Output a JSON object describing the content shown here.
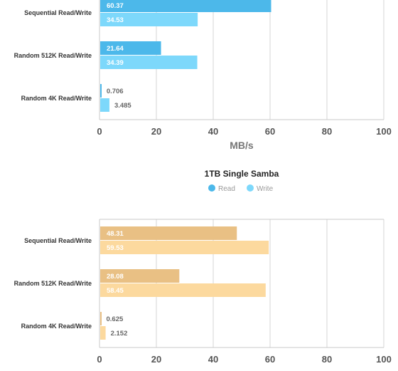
{
  "chart_data": [
    {
      "type": "bar",
      "orientation": "horizontal",
      "title": "",
      "xlabel": "MB/s",
      "xlim": [
        0,
        100
      ],
      "xticks": [
        0,
        20,
        40,
        60,
        80,
        100
      ],
      "categories": [
        "Sequential Read/Write",
        "Random 512K Read/Write",
        "Random 4K Read/Write"
      ],
      "series": [
        {
          "name": "Read",
          "color": "#4cb8ea",
          "values": [
            60.37,
            21.64,
            0.706
          ],
          "labels": [
            "60.37",
            "21.64",
            "0.706"
          ]
        },
        {
          "name": "Write",
          "color": "#7dd8fb",
          "values": [
            34.53,
            34.39,
            3.485
          ],
          "labels": [
            "34.53",
            "34.39",
            "3.485"
          ]
        }
      ],
      "grid": true,
      "legend": "none"
    },
    {
      "type": "bar",
      "orientation": "horizontal",
      "title": "1TB Single Samba",
      "xlabel": "",
      "xlim": [
        0,
        100
      ],
      "xticks": [
        0,
        20,
        40,
        60,
        80,
        100
      ],
      "categories": [
        "Sequential Read/Write",
        "Random 512K Read/Write",
        "Random 4K Read/Write"
      ],
      "series": [
        {
          "name": "Read",
          "color": "#e9c084",
          "values": [
            48.31,
            28.08,
            0.625
          ],
          "labels": [
            "48.31",
            "28.08",
            "0.625"
          ]
        },
        {
          "name": "Write",
          "color": "#fcd99e",
          "values": [
            59.53,
            58.45,
            2.152
          ],
          "labels": [
            "59.53",
            "58.45",
            "2.152"
          ]
        }
      ],
      "grid": true,
      "legend": "top-center"
    }
  ],
  "legend_colors": {
    "read": "#4cb8ea",
    "write": "#7dd8fb"
  },
  "colors": {
    "grid": "#d6d6d6",
    "axis_text": "#555555",
    "label_text": "#333333",
    "title_text": "#222222"
  }
}
